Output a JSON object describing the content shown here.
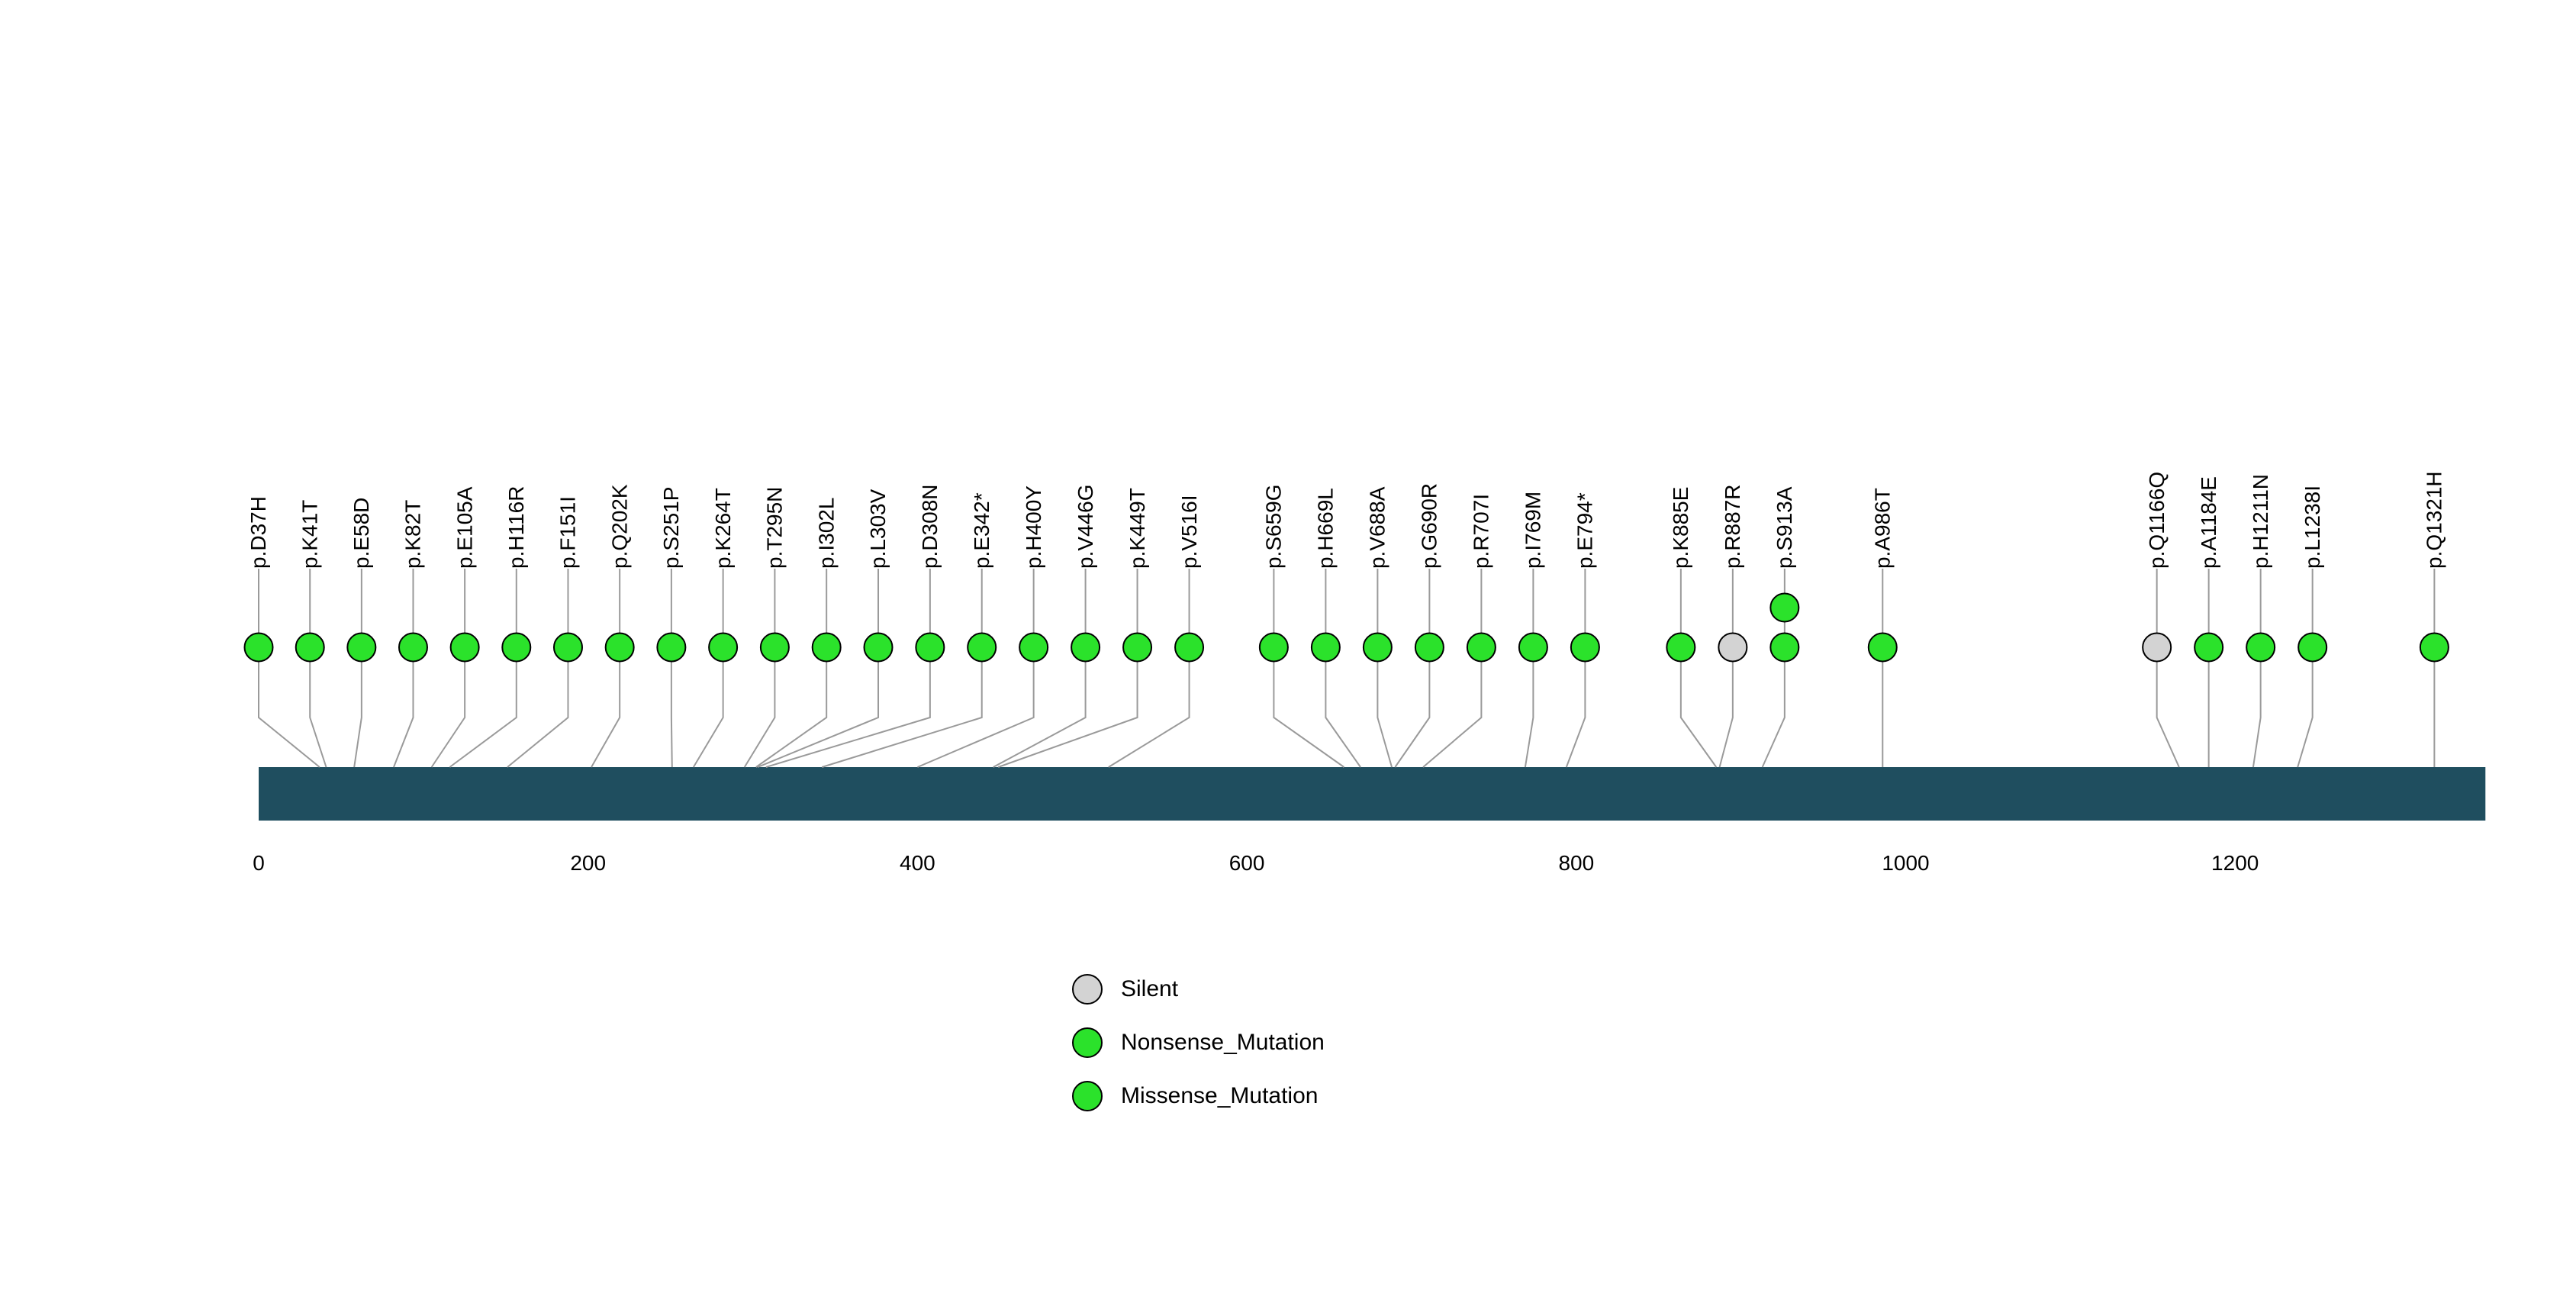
{
  "chart_data": {
    "type": "lollipop",
    "title": "",
    "protein": {
      "length": 1352,
      "axis_ticks": [
        0,
        200,
        400,
        600,
        800,
        1000,
        1200
      ],
      "bar_color": "#1F4E5F"
    },
    "colors": {
      "Silent": "#D3D3D3",
      "Nonsense_Mutation": "#2BE22B",
      "Missense_Mutation": "#2BE22B"
    },
    "legend": [
      {
        "label": "Silent",
        "color": "#D3D3D3"
      },
      {
        "label": "Nonsense_Mutation",
        "color": "#2BE22B"
      },
      {
        "label": "Missense_Mutation",
        "color": "#2BE22B"
      }
    ],
    "mutations": [
      {
        "label": "p.D37H",
        "pos": 37,
        "type": "Missense_Mutation",
        "count": 1
      },
      {
        "label": "p.K41T",
        "pos": 41,
        "type": "Missense_Mutation",
        "count": 1
      },
      {
        "label": "p.E58D",
        "pos": 58,
        "type": "Missense_Mutation",
        "count": 1
      },
      {
        "label": "p.K82T",
        "pos": 82,
        "type": "Missense_Mutation",
        "count": 1
      },
      {
        "label": "p.E105A",
        "pos": 105,
        "type": "Missense_Mutation",
        "count": 1
      },
      {
        "label": "p.H116R",
        "pos": 116,
        "type": "Missense_Mutation",
        "count": 1
      },
      {
        "label": "p.F151I",
        "pos": 151,
        "type": "Missense_Mutation",
        "count": 1
      },
      {
        "label": "p.Q202K",
        "pos": 202,
        "type": "Missense_Mutation",
        "count": 1
      },
      {
        "label": "p.S251P",
        "pos": 251,
        "type": "Missense_Mutation",
        "count": 1
      },
      {
        "label": "p.K264T",
        "pos": 264,
        "type": "Missense_Mutation",
        "count": 1
      },
      {
        "label": "p.T295N",
        "pos": 295,
        "type": "Missense_Mutation",
        "count": 1
      },
      {
        "label": "p.I302L",
        "pos": 302,
        "type": "Missense_Mutation",
        "count": 1
      },
      {
        "label": "p.L303V",
        "pos": 303,
        "type": "Missense_Mutation",
        "count": 1
      },
      {
        "label": "p.D308N",
        "pos": 308,
        "type": "Missense_Mutation",
        "count": 1
      },
      {
        "label": "p.E342*",
        "pos": 342,
        "type": "Nonsense_Mutation",
        "count": 1
      },
      {
        "label": "p.H400Y",
        "pos": 400,
        "type": "Missense_Mutation",
        "count": 1
      },
      {
        "label": "p.V446G",
        "pos": 446,
        "type": "Missense_Mutation",
        "count": 1
      },
      {
        "label": "p.K449T",
        "pos": 449,
        "type": "Missense_Mutation",
        "count": 1
      },
      {
        "label": "p.V516I",
        "pos": 516,
        "type": "Missense_Mutation",
        "count": 1
      },
      {
        "label": "p.S659G",
        "pos": 659,
        "type": "Missense_Mutation",
        "count": 1
      },
      {
        "label": "p.H669L",
        "pos": 669,
        "type": "Missense_Mutation",
        "count": 1
      },
      {
        "label": "p.V688A",
        "pos": 688,
        "type": "Missense_Mutation",
        "count": 1
      },
      {
        "label": "p.G690R",
        "pos": 690,
        "type": "Missense_Mutation",
        "count": 1
      },
      {
        "label": "p.R707I",
        "pos": 707,
        "type": "Missense_Mutation",
        "count": 1
      },
      {
        "label": "p.I769M",
        "pos": 769,
        "type": "Missense_Mutation",
        "count": 1
      },
      {
        "label": "p.E794*",
        "pos": 794,
        "type": "Nonsense_Mutation",
        "count": 1
      },
      {
        "label": "p.K885E",
        "pos": 885,
        "type": "Missense_Mutation",
        "count": 1
      },
      {
        "label": "p.R887R",
        "pos": 887,
        "type": "Silent",
        "count": 1
      },
      {
        "label": "p.S913A",
        "pos": 913,
        "type": "Missense_Mutation",
        "count": 2
      },
      {
        "label": "p.A986T",
        "pos": 986,
        "type": "Missense_Mutation",
        "count": 1
      },
      {
        "label": "p.Q1166Q",
        "pos": 1166,
        "type": "Silent",
        "count": 1
      },
      {
        "label": "p.A1184E",
        "pos": 1184,
        "type": "Missense_Mutation",
        "count": 1
      },
      {
        "label": "p.H1211N",
        "pos": 1211,
        "type": "Missense_Mutation",
        "count": 1
      },
      {
        "label": "p.L1238I",
        "pos": 1238,
        "type": "Missense_Mutation",
        "count": 1
      },
      {
        "label": "p.Q1321H",
        "pos": 1321,
        "type": "Missense_Mutation",
        "count": 1
      }
    ]
  }
}
